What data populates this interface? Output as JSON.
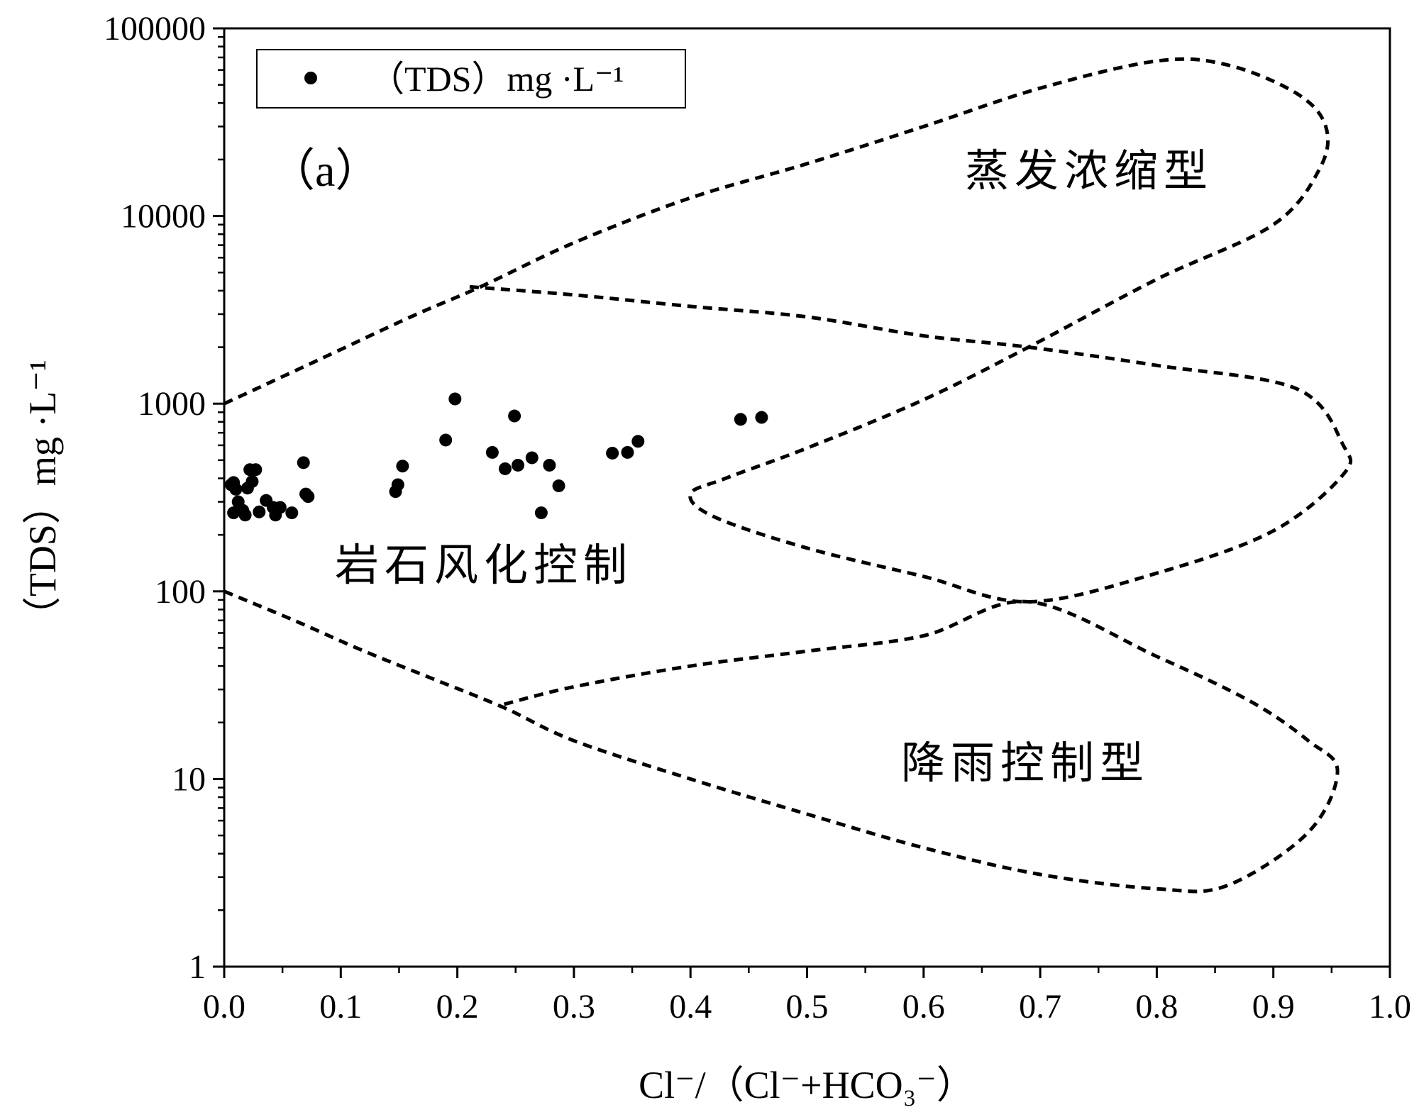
{
  "chart_data": {
    "type": "scatter",
    "panel_label": "（a）",
    "xlabel": "Cl⁻/（Cl⁻+HCO₃⁻）",
    "ylabel": "（TDS）mg ·L⁻¹",
    "xlim": [
      0.0,
      1.0
    ],
    "ylim": [
      1,
      100000
    ],
    "yscale": "log",
    "x_ticks": [
      "0.0",
      "0.1",
      "0.2",
      "0.3",
      "0.4",
      "0.5",
      "0.6",
      "0.7",
      "0.8",
      "0.9",
      "1.0"
    ],
    "y_ticks": [
      "1",
      "10",
      "100",
      "1000",
      "10000",
      "100000"
    ],
    "legend": {
      "label": "（TDS）mg ·L⁻¹",
      "position": "top-left"
    },
    "grid": false,
    "series": [
      {
        "name": "（TDS）mg ·L⁻¹",
        "marker": "circle",
        "points": [
          [
            0.006,
            370
          ],
          [
            0.008,
            380
          ],
          [
            0.01,
            350
          ],
          [
            0.008,
            262
          ],
          [
            0.012,
            300
          ],
          [
            0.016,
            270
          ],
          [
            0.018,
            255
          ],
          [
            0.02,
            355
          ],
          [
            0.022,
            445
          ],
          [
            0.024,
            385
          ],
          [
            0.027,
            445
          ],
          [
            0.03,
            265
          ],
          [
            0.036,
            305
          ],
          [
            0.042,
            280
          ],
          [
            0.044,
            255
          ],
          [
            0.048,
            280
          ],
          [
            0.058,
            262
          ],
          [
            0.068,
            485
          ],
          [
            0.07,
            330
          ],
          [
            0.072,
            320
          ],
          [
            0.147,
            340
          ],
          [
            0.149,
            370
          ],
          [
            0.153,
            465
          ],
          [
            0.19,
            640
          ],
          [
            0.198,
            1060
          ],
          [
            0.23,
            550
          ],
          [
            0.241,
            450
          ],
          [
            0.249,
            860
          ],
          [
            0.252,
            470
          ],
          [
            0.264,
            515
          ],
          [
            0.272,
            262
          ],
          [
            0.279,
            470
          ],
          [
            0.287,
            365
          ],
          [
            0.333,
            545
          ],
          [
            0.346,
            550
          ],
          [
            0.355,
            630
          ],
          [
            0.443,
            825
          ],
          [
            0.461,
            845
          ]
        ]
      }
    ],
    "regions": [
      {
        "name": "蒸发浓缩型",
        "style": "dashed",
        "boundary": [
          [
            0.0,
            1000
          ],
          [
            0.08,
            1700
          ],
          [
            0.16,
            2900
          ],
          [
            0.22,
            4200
          ],
          [
            0.3,
            7200
          ],
          [
            0.4,
            12500
          ],
          [
            0.5,
            19000
          ],
          [
            0.6,
            30000
          ],
          [
            0.7,
            48000
          ],
          [
            0.8,
            67000
          ],
          [
            0.86,
            64000
          ],
          [
            0.92,
            45000
          ],
          [
            0.945,
            30000
          ],
          [
            0.94,
            18000
          ],
          [
            0.9,
            9000
          ],
          [
            0.8,
            4600
          ],
          [
            0.69,
            2000
          ],
          [
            0.6,
            1050
          ],
          [
            0.5,
            580
          ],
          [
            0.43,
            400
          ],
          [
            0.4,
            330
          ],
          [
            0.42,
            250
          ],
          [
            0.5,
            170
          ],
          [
            0.6,
            120
          ],
          [
            0.69,
            88
          ],
          [
            0.8,
            125
          ],
          [
            0.9,
            210
          ],
          [
            0.96,
            420
          ],
          [
            0.96,
            600
          ],
          [
            0.92,
            1200
          ],
          [
            0.8,
            1600
          ],
          [
            0.69,
            2000
          ],
          [
            0.6,
            2300
          ],
          [
            0.5,
            2900
          ],
          [
            0.4,
            3300
          ],
          [
            0.3,
            3800
          ],
          [
            0.21,
            4200
          ]
        ]
      },
      {
        "name": "岩石风化控制",
        "style": "dashed"
      },
      {
        "name": "降雨控制型",
        "style": "dashed",
        "boundary": [
          [
            0.0,
            100
          ],
          [
            0.06,
            70
          ],
          [
            0.12,
            48
          ],
          [
            0.18,
            34
          ],
          [
            0.24,
            24
          ],
          [
            0.3,
            16
          ],
          [
            0.4,
            10
          ],
          [
            0.5,
            6.5
          ],
          [
            0.6,
            4.3
          ],
          [
            0.7,
            3.1
          ],
          [
            0.8,
            2.6
          ],
          [
            0.86,
            2.7
          ],
          [
            0.93,
            5.2
          ],
          [
            0.955,
            11
          ],
          [
            0.93,
            16
          ],
          [
            0.88,
            26
          ],
          [
            0.8,
            45
          ],
          [
            0.69,
            88
          ],
          [
            0.6,
            58
          ],
          [
            0.5,
            48
          ],
          [
            0.4,
            40
          ],
          [
            0.3,
            31
          ],
          [
            0.24,
            25
          ]
        ]
      }
    ]
  }
}
